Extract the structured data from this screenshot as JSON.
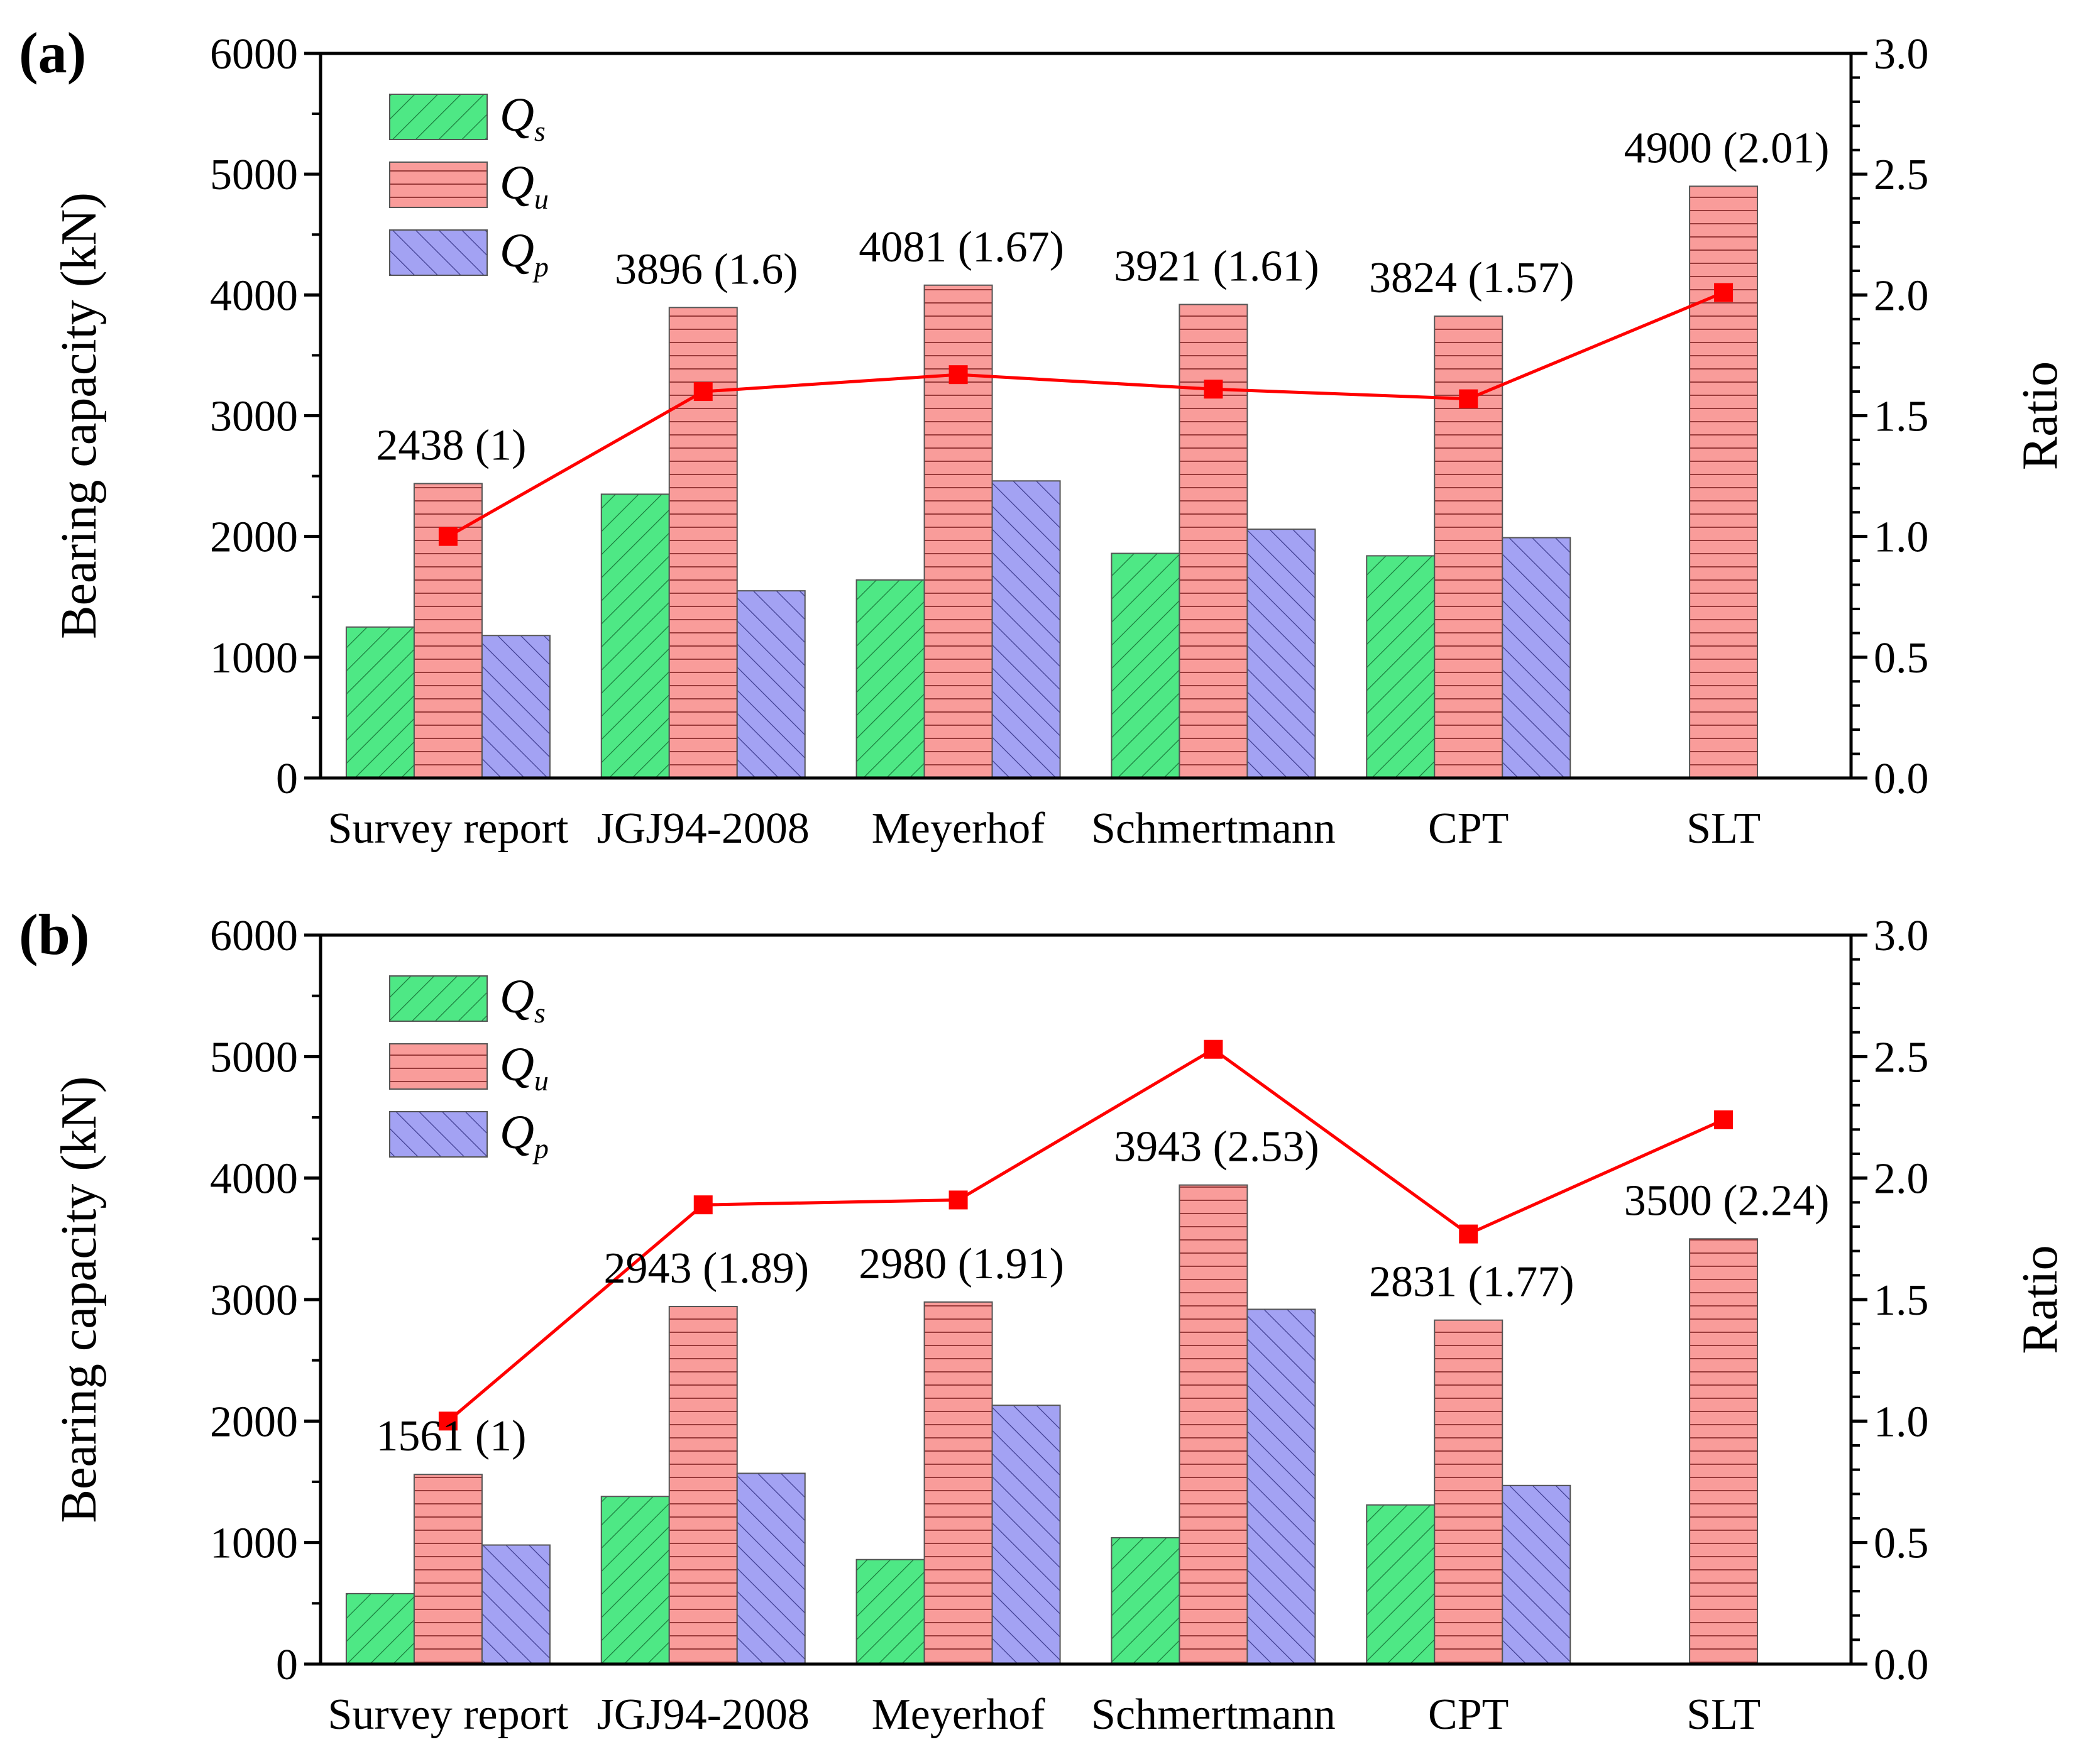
{
  "colors": {
    "qs": "#4ee885",
    "qu": "#f99c9a",
    "qp": "#a3a2f3",
    "ratio_line": "#ff0000"
  },
  "chart_data": [
    {
      "type": "bar",
      "panel_label": "(a)",
      "title": "",
      "xlabel": "",
      "ylabel": "Bearing capacity (kN)",
      "y2label": "Ratio",
      "ylim": [
        0,
        6000
      ],
      "y2lim": [
        0,
        3.0
      ],
      "yticks": [
        "0",
        "1000",
        "2000",
        "3000",
        "4000",
        "5000",
        "6000"
      ],
      "y2ticks": [
        "0.0",
        "0.5",
        "1.0",
        "1.5",
        "2.0",
        "2.5",
        "3.0"
      ],
      "categories": [
        "Survey report",
        "JGJ94-2008",
        "Meyerhof",
        "Schmertmann",
        "CPT",
        "SLT"
      ],
      "legend": {
        "position": "top-left",
        "entries": [
          {
            "key": "qs",
            "main": "Q",
            "sub": "s"
          },
          {
            "key": "qu",
            "main": "Q",
            "sub": "u"
          },
          {
            "key": "qp",
            "main": "Q",
            "sub": "p"
          }
        ]
      },
      "series": [
        {
          "key": "qs",
          "name": "Qs",
          "values": [
            1250,
            2350,
            1640,
            1860,
            1840,
            null
          ]
        },
        {
          "key": "qu",
          "name": "Qu",
          "values": [
            2438,
            3896,
            4081,
            3921,
            3824,
            4900
          ]
        },
        {
          "key": "qp",
          "name": "Qp",
          "values": [
            1180,
            1550,
            2460,
            2060,
            1990,
            null
          ]
        }
      ],
      "ratio": {
        "name": "Ratio",
        "values": [
          1.0,
          1.6,
          1.67,
          1.61,
          1.57,
          2.01
        ]
      },
      "annotations": [
        "2438 (1)",
        "3896 (1.6)",
        "4081 (1.67)",
        "3921 (1.61)",
        "3824 (1.57)",
        "4900 (2.01)"
      ]
    },
    {
      "type": "bar",
      "panel_label": "(b)",
      "title": "",
      "xlabel": "",
      "ylabel": "Bearing capacity (kN)",
      "y2label": "Ratio",
      "ylim": [
        0,
        6000
      ],
      "y2lim": [
        0,
        3.0
      ],
      "yticks": [
        "0",
        "1000",
        "2000",
        "3000",
        "4000",
        "5000",
        "6000"
      ],
      "y2ticks": [
        "0.0",
        "0.5",
        "1.0",
        "1.5",
        "2.0",
        "2.5",
        "3.0"
      ],
      "categories": [
        "Survey report",
        "JGJ94-2008",
        "Meyerhof",
        "Schmertmann",
        "CPT",
        "SLT"
      ],
      "legend": {
        "position": "top-left",
        "entries": [
          {
            "key": "qs",
            "main": "Q",
            "sub": "s"
          },
          {
            "key": "qu",
            "main": "Q",
            "sub": "u"
          },
          {
            "key": "qp",
            "main": "Q",
            "sub": "p"
          }
        ]
      },
      "series": [
        {
          "key": "qs",
          "name": "Qs",
          "values": [
            580,
            1380,
            860,
            1040,
            1310,
            null
          ]
        },
        {
          "key": "qu",
          "name": "Qu",
          "values": [
            1561,
            2943,
            2980,
            3943,
            2831,
            3500
          ]
        },
        {
          "key": "qp",
          "name": "Qp",
          "values": [
            980,
            1570,
            2130,
            2920,
            1470,
            null
          ]
        }
      ],
      "ratio": {
        "name": "Ratio",
        "values": [
          1.0,
          1.89,
          1.91,
          2.53,
          1.77,
          2.24
        ]
      },
      "annotations": [
        "1561 (1)",
        "2943 (1.89)",
        "2980 (1.91)",
        "3943 (2.53)",
        "2831 (1.77)",
        "3500 (2.24)"
      ]
    }
  ]
}
